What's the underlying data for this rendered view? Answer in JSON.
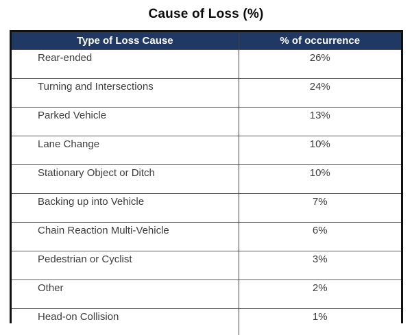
{
  "title": "Cause of Loss (%)",
  "colors": {
    "header_bg": "#1F3864",
    "header_text": "#FFFFFF",
    "body_text": "#3D3D3D",
    "outer_border": "#111111",
    "grid_line": "#595959"
  },
  "table": {
    "columns": [
      "Type of Loss Cause",
      "% of occurrence"
    ],
    "rows": [
      {
        "cause": "Rear-ended",
        "pct": "26%"
      },
      {
        "cause": "Turning and Intersections",
        "pct": "24%"
      },
      {
        "cause": "Parked Vehicle",
        "pct": "13%"
      },
      {
        "cause": "Lane Change",
        "pct": "10%"
      },
      {
        "cause": "Stationary Object or Ditch",
        "pct": "10%"
      },
      {
        "cause": "Backing up into Vehicle",
        "pct": "7%"
      },
      {
        "cause": "Chain Reaction Multi-Vehicle",
        "pct": "6%"
      },
      {
        "cause": "Pedestrian or Cyclist",
        "pct": "3%"
      },
      {
        "cause": "Other",
        "pct": "2%"
      },
      {
        "cause": "Head-on Collision",
        "pct": "1%"
      }
    ]
  },
  "chart_data": {
    "type": "table",
    "title": "Cause of Loss (%)",
    "columns": [
      "Type of Loss Cause",
      "% of occurrence"
    ],
    "categories": [
      "Rear-ended",
      "Turning and Intersections",
      "Parked Vehicle",
      "Lane Change",
      "Stationary Object or Ditch",
      "Backing up into Vehicle",
      "Chain Reaction Multi-Vehicle",
      "Pedestrian or Cyclist",
      "Other",
      "Head-on Collision"
    ],
    "values": [
      26,
      24,
      13,
      10,
      10,
      7,
      6,
      3,
      2,
      1
    ],
    "unit": "%"
  }
}
